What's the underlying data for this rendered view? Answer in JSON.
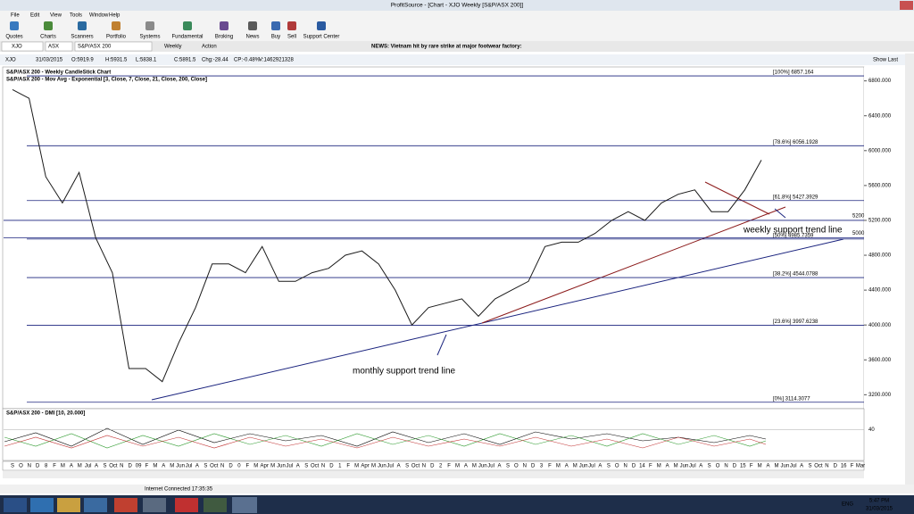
{
  "window": {
    "title": "ProfitSource - [Chart - XJO Weekly [S&P/ASX 200]]"
  },
  "menu": [
    "File",
    "Edit",
    "View",
    "Tools",
    "Window",
    "Help"
  ],
  "toolbar": [
    "Quotes",
    "Charts",
    "Scanners",
    "Portfolio",
    "Systems",
    "Fundamental",
    "Broking",
    "News",
    "Buy",
    "Sell",
    "Support Center"
  ],
  "symbol_bar": {
    "symbol": "XJO",
    "exchange": "ASX",
    "name": "S&P/ASX 200",
    "period": "Weekly",
    "action": "Action",
    "news": "NEWS: Vietnam hit by rare strike at major footwear factory:"
  },
  "info_bar": {
    "symbol": "XJO",
    "date": "31/03/2015",
    "open": "O:5919.9",
    "high": "H:5931.5",
    "low": "L:5838.1",
    "close": "C:5891.5",
    "change": "Chg:-28.44",
    "change_percent": "CP:-0.48%",
    "volume": "V:1462921328",
    "show_last": "Show Last"
  },
  "chart_data": {
    "type": "line",
    "title": "S&P/ASX 200 - Weekly CandleStick Chart",
    "subtitle": "S&P/ASX 200 - Mov Avg - Exponential [3, Close, 7, Close, 21, Close, 200, Close]",
    "series": [
      {
        "name": "S&P/ASX 200",
        "color": "#1a1a1a",
        "values": [
          6700,
          6600,
          5700,
          5400,
          5750,
          5000,
          4600,
          3500,
          3500,
          3350,
          3800,
          4200,
          4700,
          4700,
          4600,
          4900,
          4500,
          4500,
          4600,
          4650,
          4800,
          4850,
          4700,
          4400,
          4000,
          4200,
          4250,
          4300,
          4100,
          4300,
          4400,
          4500,
          4900,
          4950,
          4950,
          5050,
          5200,
          5300,
          5200,
          5400,
          5500,
          5550,
          5300,
          5300,
          5550,
          5891.5
        ]
      }
    ],
    "ylim": [
      3050,
      6950
    ],
    "yticks": [
      {
        "value": 6800,
        "label": "6800.000"
      },
      {
        "value": 6400,
        "label": "6400.000"
      },
      {
        "value": 6000,
        "label": "6000.000"
      },
      {
        "value": 5600,
        "label": "5600.000"
      },
      {
        "value": 5200,
        "label": "5200.000"
      },
      {
        "value": 4800,
        "label": "4800.000"
      },
      {
        "value": 4400,
        "label": "4400.000"
      },
      {
        "value": 4000,
        "label": "4000.000"
      },
      {
        "value": 3600,
        "label": "3600.000"
      },
      {
        "value": 3200,
        "label": "3200.000"
      }
    ],
    "fib_levels": [
      {
        "value": 6857.164,
        "label": "[100%] 6857.164"
      },
      {
        "value": 6056.1928,
        "label": "[78.6%] 6056.1928"
      },
      {
        "value": 5427.3929,
        "label": "[61.8%] 5427.3929"
      },
      {
        "value": 4985.7359,
        "label": "[50%] 4985.7359"
      },
      {
        "value": 4544.0788,
        "label": "[38.2%] 4544.0788"
      },
      {
        "value": 3997.6238,
        "label": "[23.6%] 3997.6238"
      },
      {
        "value": 3114.3077,
        "label": "[0%] 3114.3077"
      }
    ],
    "levels": [
      5200,
      5000
    ],
    "annotations": [
      "weekly support trend line",
      "monthly support trend line"
    ],
    "x_labels": [
      "S",
      "O",
      "N",
      "D",
      "8",
      "F",
      "M",
      "A",
      "M",
      "Jul",
      "A",
      "S",
      "Oct",
      "N",
      "D",
      "09",
      "F",
      "M",
      "A",
      "M",
      "Jun",
      "Jul",
      "A",
      "S",
      "Oct",
      "N",
      "D",
      "0",
      "F",
      "M",
      "Apr",
      "M",
      "Jun",
      "Jul",
      "A",
      "S",
      "Oct",
      "N",
      "D",
      "1",
      "F",
      "M",
      "Apr",
      "M",
      "Jun",
      "Jul",
      "A",
      "S",
      "Oct",
      "N",
      "D",
      "2",
      "F",
      "M",
      "A",
      "M",
      "Jun",
      "Jul",
      "A",
      "S",
      "O",
      "N",
      "D",
      "3",
      "F",
      "M",
      "A",
      "M",
      "Jun",
      "Jul",
      "A",
      "S",
      "O",
      "N",
      "D",
      "14",
      "F",
      "M",
      "A",
      "M",
      "Jun",
      "Jul",
      "A",
      "S",
      "O",
      "N",
      "D",
      "15",
      "F",
      "M",
      "A",
      "M",
      "Jun",
      "Jul",
      "A",
      "S",
      "Oct",
      "N",
      "D",
      "16",
      "F",
      "Mar"
    ],
    "grid": false
  },
  "dmi": {
    "title": "S&P/ASX 200 - DMI [10, 20.000]",
    "ylim": [
      0,
      60
    ],
    "yticks": [
      40
    ]
  },
  "status_bar": {
    "connection": "Internet Connected 17:35:35"
  },
  "taskbar": {
    "language": "ENG",
    "time": "5:47 PM",
    "date": "31/03/2015"
  }
}
